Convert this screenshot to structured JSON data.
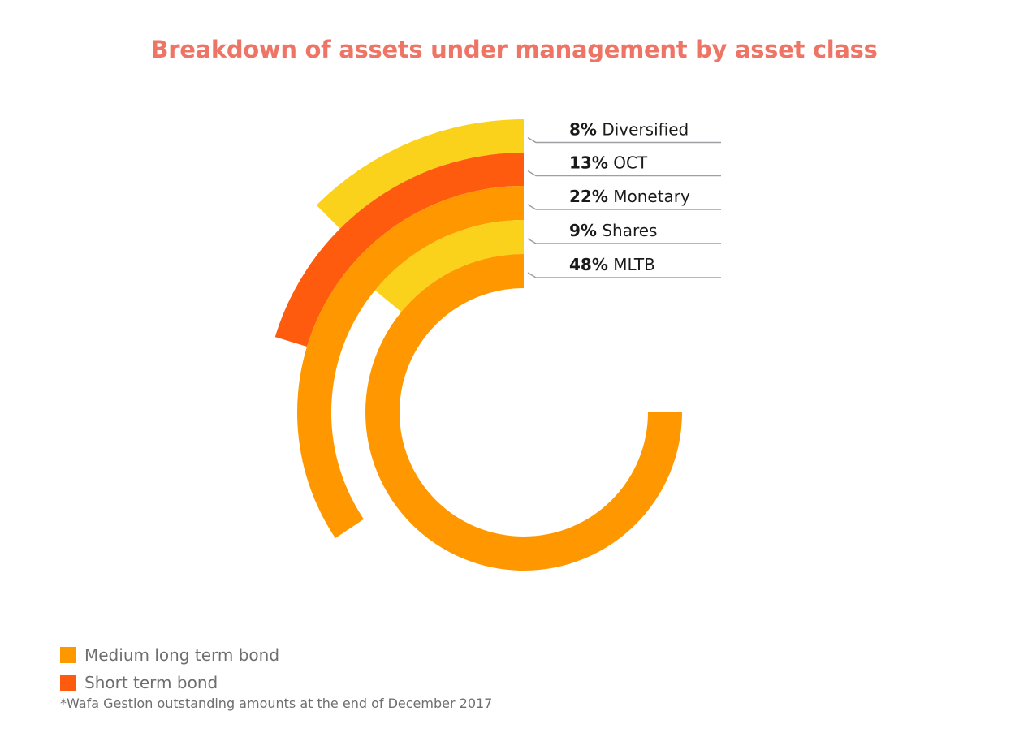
{
  "chart_data": {
    "type": "radial-bar",
    "title": "Breakdown of assets under management by asset class",
    "unit": "%",
    "categories": [
      "Diversified",
      "OCT",
      "Monetary",
      "Shares",
      "MLTB"
    ],
    "values": [
      8,
      13,
      22,
      9,
      48
    ],
    "value_labels": [
      "8%",
      "13%",
      "22%",
      "9%",
      "48%"
    ],
    "colors": [
      "#fad21c",
      "#ff5b0f",
      "#ff9800",
      "#fad21c",
      "#ff9800"
    ],
    "scale_max": 64,
    "legend": [
      {
        "label": "Medium long term bond",
        "color": "#ff9800"
      },
      {
        "label": "Short term bond",
        "color": "#ff5b0f"
      }
    ],
    "footnote": "*Wafa Gestion outstanding amounts at the end of December 2017"
  }
}
